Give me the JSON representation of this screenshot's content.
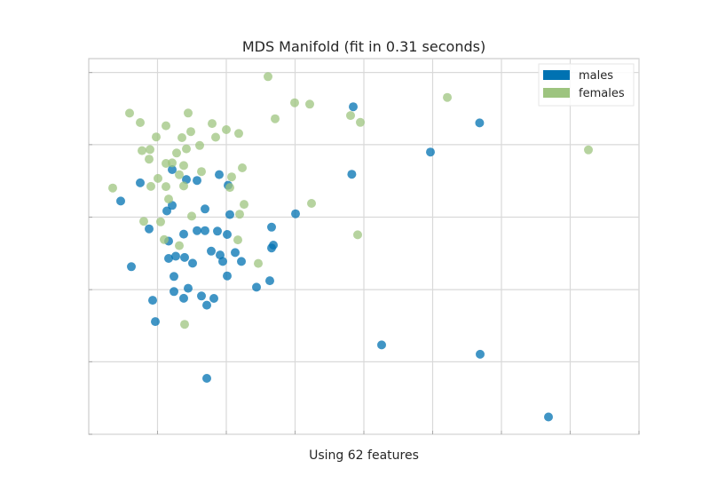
{
  "chart_data": {
    "type": "scatter",
    "title": "MDS Manifold (fit in 0.31 seconds)",
    "xlabel": "Using 62 features",
    "ylabel": "",
    "xlim": [
      0,
      1
    ],
    "ylim": [
      0,
      1
    ],
    "grid": true,
    "legend": {
      "placement": "top-right"
    },
    "series": [
      {
        "name": "males",
        "color": "#0072B2",
        "points": [
          [
            0.058,
            0.6209
          ],
          [
            0.0774,
            0.446
          ],
          [
            0.0935,
            0.6692
          ],
          [
            0.1097,
            0.5469
          ],
          [
            0.1161,
            0.3567
          ],
          [
            0.121,
            0.3
          ],
          [
            0.1419,
            0.5945
          ],
          [
            0.1452,
            0.5141
          ],
          [
            0.1452,
            0.4682
          ],
          [
            0.1516,
            0.7045
          ],
          [
            0.1516,
            0.6092
          ],
          [
            0.1548,
            0.4201
          ],
          [
            0.1548,
            0.3799
          ],
          [
            0.1581,
            0.4741
          ],
          [
            0.1726,
            0.5328
          ],
          [
            0.1726,
            0.362
          ],
          [
            0.1742,
            0.4706
          ],
          [
            0.1774,
            0.6783
          ],
          [
            0.1806,
            0.3886
          ],
          [
            0.1887,
            0.4553
          ],
          [
            0.1968,
            0.6757
          ],
          [
            0.1968,
            0.542
          ],
          [
            0.2048,
            0.3682
          ],
          [
            0.2113,
            0.5998
          ],
          [
            0.2113,
            0.542
          ],
          [
            0.2145,
            0.3437
          ],
          [
            0.2145,
            0.1489
          ],
          [
            0.2226,
            0.4874
          ],
          [
            0.2274,
            0.3617
          ],
          [
            0.2339,
            0.5407
          ],
          [
            0.2371,
            0.6912
          ],
          [
            0.2387,
            0.4774
          ],
          [
            0.2436,
            0.46
          ],
          [
            0.2516,
            0.532
          ],
          [
            0.2516,
            0.4214
          ],
          [
            0.2532,
            0.6629
          ],
          [
            0.2565,
            0.5849
          ],
          [
            0.2661,
            0.4836
          ],
          [
            0.2774,
            0.46
          ],
          [
            0.3048,
            0.3914
          ],
          [
            0.329,
            0.4087
          ],
          [
            0.3323,
            0.496
          ],
          [
            0.3323,
            0.5514
          ],
          [
            0.3355,
            0.5035
          ],
          [
            0.3758,
            0.587
          ],
          [
            0.4781,
            0.6921
          ],
          [
            0.4806,
            0.8719
          ],
          [
            0.5323,
            0.2378
          ],
          [
            0.621,
            0.7514
          ],
          [
            0.7103,
            0.8288
          ],
          [
            0.7113,
            0.213
          ],
          [
            0.8355,
            0.046
          ]
        ]
      },
      {
        "name": "females",
        "color": "#9DC47F",
        "points": [
          [
            0.0435,
            0.6556
          ],
          [
            0.0742,
            0.8548
          ],
          [
            0.0935,
            0.8299
          ],
          [
            0.0968,
            0.7552
          ],
          [
            0.1,
            0.567
          ],
          [
            0.1097,
            0.7323
          ],
          [
            0.1113,
            0.7579
          ],
          [
            0.1129,
            0.6599
          ],
          [
            0.1226,
            0.7914
          ],
          [
            0.1258,
            0.681
          ],
          [
            0.1306,
            0.5654
          ],
          [
            0.1371,
            0.5182
          ],
          [
            0.1403,
            0.7211
          ],
          [
            0.1403,
            0.6594
          ],
          [
            0.1403,
            0.8212
          ],
          [
            0.1452,
            0.6263
          ],
          [
            0.1516,
            0.7224
          ],
          [
            0.1597,
            0.7486
          ],
          [
            0.1645,
            0.691
          ],
          [
            0.1645,
            0.5021
          ],
          [
            0.1694,
            0.7896
          ],
          [
            0.1726,
            0.7153
          ],
          [
            0.1726,
            0.6611
          ],
          [
            0.1742,
            0.2927
          ],
          [
            0.1774,
            0.7599
          ],
          [
            0.1806,
            0.8552
          ],
          [
            0.1855,
            0.8057
          ],
          [
            0.1871,
            0.5807
          ],
          [
            0.2016,
            0.7688
          ],
          [
            0.2048,
            0.6993
          ],
          [
            0.2242,
            0.8273
          ],
          [
            0.2306,
            0.7908
          ],
          [
            0.25,
            0.8108
          ],
          [
            0.2565,
            0.657
          ],
          [
            0.2597,
            0.6852
          ],
          [
            0.271,
            0.5175
          ],
          [
            0.2726,
            0.8007
          ],
          [
            0.2742,
            0.5859
          ],
          [
            0.279,
            0.7092
          ],
          [
            0.2823,
            0.6121
          ],
          [
            0.3081,
            0.4549
          ],
          [
            0.3258,
            0.9521
          ],
          [
            0.3387,
            0.8399
          ],
          [
            0.3742,
            0.8826
          ],
          [
            0.4016,
            0.8788
          ],
          [
            0.4048,
            0.6147
          ],
          [
            0.4758,
            0.8484
          ],
          [
            0.4887,
            0.531
          ],
          [
            0.4935,
            0.8302
          ],
          [
            0.6516,
            0.8968
          ],
          [
            0.9081,
            0.757
          ]
        ]
      }
    ]
  }
}
